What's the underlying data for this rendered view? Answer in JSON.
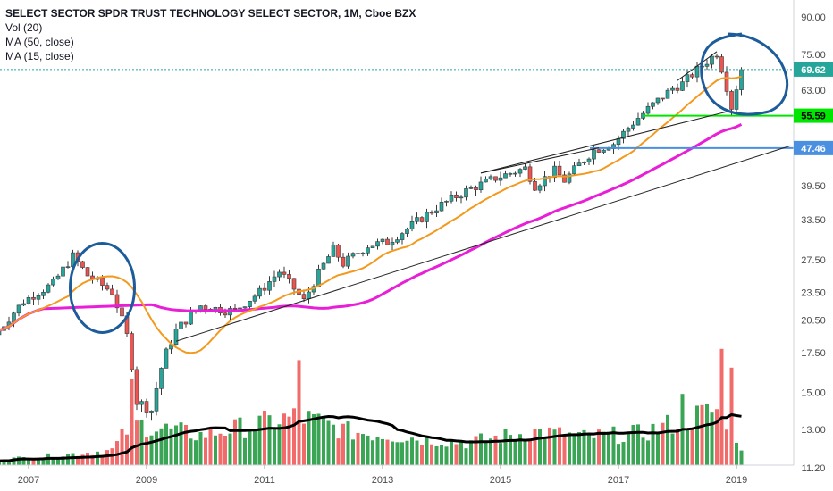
{
  "chart_data": {
    "type": "candlestick",
    "legend": {
      "title": "SELECT SECTOR SPDR TRUST TECHNOLOGY SELECT SECTOR, 1M, Cboe BZX",
      "vol": "Vol (20)",
      "ma50": "MA (50, close)",
      "ma15": "MA (15, close)"
    },
    "price_scale": "log",
    "price_ticks": [
      "90.00",
      "75.00",
      "63.00",
      "55.59",
      "47.46",
      "39.50",
      "33.50",
      "27.50",
      "23.50",
      "20.50",
      "17.50",
      "15.00",
      "13.00",
      "11.20"
    ],
    "time_ticks": [
      "2007",
      "2009",
      "2011",
      "2013",
      "2015",
      "2017",
      "2019"
    ],
    "last_price": "69.62",
    "levels": [
      {
        "label": "55.59",
        "value": 55.59,
        "color": "#00e600"
      },
      {
        "label": "47.46",
        "value": 47.46,
        "color": "#4a8fe0"
      }
    ],
    "colors": {
      "up": "#26a69a",
      "down": "#ef5350",
      "vol_up": "#3aa655",
      "vol_down": "#f26b6b",
      "ma50": "#e91ed7",
      "ma15": "#f39a1e",
      "vol_ma": "#000000",
      "circle": "#1d5c9a",
      "trend": "#222222"
    },
    "price_anchors": [
      [
        "2006-07",
        19.5
      ],
      [
        "2006-12",
        22.5
      ],
      [
        "2007-06",
        24.5
      ],
      [
        "2007-10",
        28.0
      ],
      [
        "2008-01",
        25.5
      ],
      [
        "2008-06",
        23.5
      ],
      [
        "2008-09",
        19.0
      ],
      [
        "2008-11",
        14.5
      ],
      [
        "2009-02",
        14.0
      ],
      [
        "2009-04",
        16.5
      ],
      [
        "2009-07",
        19.5
      ],
      [
        "2009-12",
        22.0
      ],
      [
        "2010-05",
        21.5
      ],
      [
        "2010-07",
        21.5
      ],
      [
        "2010-12",
        23.5
      ],
      [
        "2011-04",
        26.0
      ],
      [
        "2011-09",
        22.5
      ],
      [
        "2012-03",
        29.0
      ],
      [
        "2012-05",
        27.0
      ],
      [
        "2012-10",
        29.5
      ],
      [
        "2013-02",
        30.0
      ],
      [
        "2013-06",
        32.0
      ],
      [
        "2013-12",
        35.5
      ],
      [
        "2014-06",
        38.5
      ],
      [
        "2014-12",
        41.0
      ],
      [
        "2015-06",
        43.0
      ],
      [
        "2015-08",
        39.5
      ],
      [
        "2015-12",
        42.5
      ],
      [
        "2016-02",
        40.5
      ],
      [
        "2016-08",
        47.0
      ],
      [
        "2016-12",
        48.5
      ],
      [
        "2017-05",
        55.0
      ],
      [
        "2017-12",
        63.5
      ],
      [
        "2018-02",
        65.0
      ],
      [
        "2018-09",
        75.5
      ],
      [
        "2018-10",
        70.0
      ],
      [
        "2018-12",
        58.0
      ],
      [
        "2019-02",
        69.62
      ]
    ],
    "volume_anchors": [
      [
        "2006-07",
        0.15
      ],
      [
        "2007-06",
        0.25
      ],
      [
        "2008-06",
        0.4
      ],
      [
        "2008-10",
        1.1
      ],
      [
        "2009-03",
        1.0
      ],
      [
        "2009-12",
        0.8
      ],
      [
        "2010-06",
        0.95
      ],
      [
        "2011-08",
        1.3
      ],
      [
        "2012-06",
        0.9
      ],
      [
        "2013-06",
        0.75
      ],
      [
        "2014-06",
        0.6
      ],
      [
        "2015-08",
        0.9
      ],
      [
        "2016-06",
        0.75
      ],
      [
        "2017-06",
        0.85
      ],
      [
        "2018-02",
        1.2
      ],
      [
        "2018-10",
        1.5
      ],
      [
        "2019-02",
        0.5
      ]
    ],
    "volume_spikes": [
      [
        "2008-10",
        2.3
      ],
      [
        "2011-08",
        2.8
      ],
      [
        "2018-10",
        3.1
      ],
      [
        "2018-12",
        2.6
      ],
      [
        "2018-02",
        1.9
      ]
    ]
  }
}
